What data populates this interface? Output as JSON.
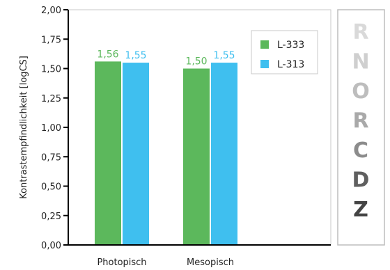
{
  "chart_data": {
    "type": "bar",
    "categories": [
      "Photopisch",
      "Mesopisch"
    ],
    "series": [
      {
        "name": "L-333",
        "values": [
          1.56,
          1.5
        ],
        "labels": [
          "1,56",
          "1,50"
        ],
        "color": "#5cb85c"
      },
      {
        "name": "L-313",
        "values": [
          1.55,
          1.55
        ],
        "labels": [
          "1,55",
          "1,55"
        ],
        "color": "#3fbfef"
      }
    ],
    "title": "",
    "xlabel": "",
    "ylabel": "Kontrastempfindlichkeit [logCS]",
    "ylim": [
      0,
      2
    ],
    "yticks": [
      0,
      0.25,
      0.5,
      0.75,
      1.0,
      1.25,
      1.5,
      1.75,
      2.0
    ],
    "ytick_labels": [
      "0,00",
      "0,25",
      "0,50",
      "0,75",
      "1,00",
      "1,25",
      "1,50",
      "1,75",
      "2,00"
    ],
    "grid": false,
    "legend_position": "top-right"
  },
  "letter_chart": {
    "letters": [
      "R",
      "N",
      "O",
      "R",
      "C",
      "D",
      "Z"
    ],
    "colors": [
      "#d9d9d9",
      "#cfcfcf",
      "#bdbdbd",
      "#a9a9a9",
      "#8c8c8c",
      "#5f5f5f",
      "#444444"
    ]
  }
}
